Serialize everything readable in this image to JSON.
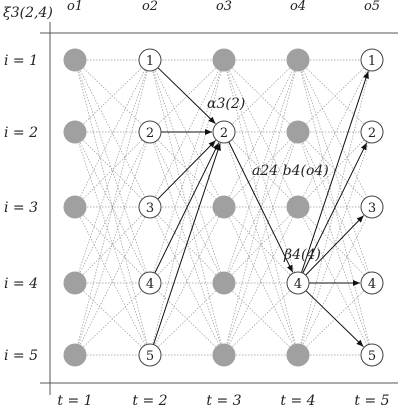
{
  "corner_label": "ξ3(2,4)",
  "observations": [
    "o1",
    "o2",
    "o3",
    "o4",
    "o5"
  ],
  "time_labels": [
    "t = 1",
    "t = 2",
    "t = 3",
    "t = 4",
    "t = 5"
  ],
  "state_labels": [
    "i = 1",
    "i = 2",
    "i = 3",
    "i = 4",
    "i = 5"
  ],
  "nodes": [
    {
      "t": 1,
      "states": [
        {
          "i": 1,
          "label": "",
          "filled": true
        },
        {
          "i": 2,
          "label": "",
          "filled": true
        },
        {
          "i": 3,
          "label": "",
          "filled": true
        },
        {
          "i": 4,
          "label": "",
          "filled": true
        },
        {
          "i": 5,
          "label": "",
          "filled": true
        }
      ]
    },
    {
      "t": 2,
      "states": [
        {
          "i": 1,
          "label": "1",
          "filled": false
        },
        {
          "i": 2,
          "label": "2",
          "filled": false
        },
        {
          "i": 3,
          "label": "3",
          "filled": false
        },
        {
          "i": 4,
          "label": "4",
          "filled": false
        },
        {
          "i": 5,
          "label": "5",
          "filled": false
        }
      ]
    },
    {
      "t": 3,
      "states": [
        {
          "i": 1,
          "label": "",
          "filled": true
        },
        {
          "i": 2,
          "label": "2",
          "filled": false
        },
        {
          "i": 3,
          "label": "",
          "filled": true
        },
        {
          "i": 4,
          "label": "",
          "filled": true
        },
        {
          "i": 5,
          "label": "",
          "filled": true
        }
      ]
    },
    {
      "t": 4,
      "states": [
        {
          "i": 1,
          "label": "",
          "filled": true
        },
        {
          "i": 2,
          "label": "",
          "filled": true
        },
        {
          "i": 3,
          "label": "",
          "filled": true
        },
        {
          "i": 4,
          "label": "4",
          "filled": false
        },
        {
          "i": 5,
          "label": "",
          "filled": true
        }
      ]
    },
    {
      "t": 5,
      "states": [
        {
          "i": 1,
          "label": "1",
          "filled": false
        },
        {
          "i": 2,
          "label": "2",
          "filled": false
        },
        {
          "i": 3,
          "label": "3",
          "filled": false
        },
        {
          "i": 4,
          "label": "4",
          "filled": false
        },
        {
          "i": 5,
          "label": "5",
          "filled": false
        }
      ]
    }
  ],
  "annotations": {
    "alpha": "α3(2)",
    "transition_emission": "a24 b4(o4)",
    "beta": "β4(4)"
  },
  "highlight_edges": [
    {
      "from": [
        2,
        1
      ],
      "to": [
        3,
        2
      ]
    },
    {
      "from": [
        2,
        2
      ],
      "to": [
        3,
        2
      ]
    },
    {
      "from": [
        2,
        3
      ],
      "to": [
        3,
        2
      ]
    },
    {
      "from": [
        2,
        4
      ],
      "to": [
        3,
        2
      ]
    },
    {
      "from": [
        2,
        5
      ],
      "to": [
        3,
        2
      ]
    },
    {
      "from": [
        3,
        2
      ],
      "to": [
        4,
        4
      ]
    },
    {
      "from": [
        4,
        4
      ],
      "to": [
        5,
        1
      ]
    },
    {
      "from": [
        4,
        4
      ],
      "to": [
        5,
        2
      ]
    },
    {
      "from": [
        4,
        4
      ],
      "to": [
        5,
        3
      ]
    },
    {
      "from": [
        4,
        4
      ],
      "to": [
        5,
        4
      ]
    },
    {
      "from": [
        4,
        4
      ],
      "to": [
        5,
        5
      ]
    }
  ],
  "colors": {
    "filled_node": "#a0a0a0",
    "open_node": "#ffffff",
    "stroke": "#444444",
    "dotted_edge": "#9a9a9a",
    "highlight_edge": "#111111"
  }
}
